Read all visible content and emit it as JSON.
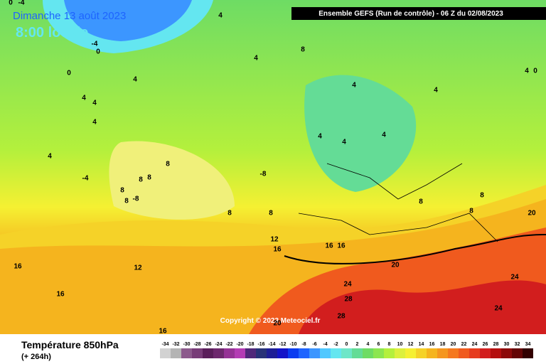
{
  "header": {
    "date": "Dimanche 13 août 2023",
    "time": "8:00 locale",
    "model": "Ensemble GEFS  (Run de contrôle)  -  06 Z du 02/08/2023",
    "copyright": "Copyright © 2023 Meteociel.fr"
  },
  "footer": {
    "variable": "Température 850hPa",
    "lead": "(+ 264h)"
  },
  "legend": {
    "labels": [
      -34,
      -32,
      -30,
      -28,
      -26,
      -24,
      -22,
      -20,
      -18,
      -16,
      -14,
      -12,
      -10,
      -8,
      -6,
      -4,
      -2,
      0,
      2,
      4,
      6,
      8,
      10,
      12,
      14,
      16,
      18,
      20,
      22,
      24,
      26,
      28,
      30,
      32,
      34
    ],
    "colors": [
      "#d2d2d2",
      "#b4b4b4",
      "#8c5a8c",
      "#783c78",
      "#5a1e5a",
      "#6e286e",
      "#963296",
      "#b43cb4",
      "#50287a",
      "#283278",
      "#1e1e96",
      "#1414c8",
      "#0a3cf0",
      "#1e64ff",
      "#3c96ff",
      "#50c8ff",
      "#64e6f0",
      "#6ee6c8",
      "#64dc96",
      "#6edc64",
      "#8ce650",
      "#b4f03c",
      "#dcf03c",
      "#f5f032",
      "#f5d228",
      "#f5b41e",
      "#f5961e",
      "#f5781e",
      "#f05a1e",
      "#e63c1e",
      "#d21e1e",
      "#b40f0f",
      "#8c0a0a",
      "#640505",
      "#320000"
    ]
  },
  "map_labels": [
    0,
    -4,
    4,
    -4,
    0,
    8,
    4,
    0,
    4,
    4,
    4,
    4,
    4,
    4,
    4,
    0,
    4,
    4,
    4,
    4,
    8,
    -4,
    8,
    8,
    -8,
    8,
    8,
    -8,
    8,
    8,
    8,
    8,
    8,
    20,
    12,
    16,
    16,
    16,
    16,
    12,
    20,
    24,
    24,
    16,
    28,
    24,
    28,
    20,
    16
  ]
}
